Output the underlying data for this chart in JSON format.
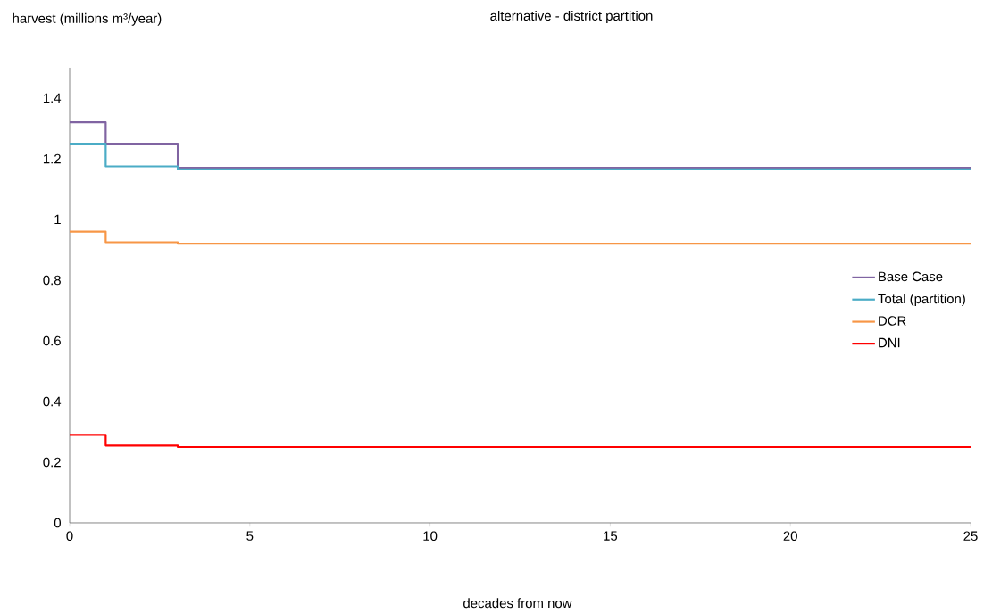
{
  "chart_data": {
    "type": "step",
    "title": "alternative - district partition",
    "xlabel": "decades from now",
    "ylabel": "harvest (millions m³/year)",
    "x": [
      0,
      1,
      3,
      25
    ],
    "series": [
      {
        "name": "Base Case",
        "color": "#8064a2",
        "values": [
          1.32,
          1.25,
          1.17,
          1.17
        ]
      },
      {
        "name": "Total (partition)",
        "color": "#4bacc6",
        "values": [
          1.25,
          1.175,
          1.165,
          1.165
        ]
      },
      {
        "name": "DCR",
        "color": "#f79646",
        "values": [
          0.96,
          0.925,
          0.92,
          0.92
        ]
      },
      {
        "name": "DNI",
        "color": "#ff0000",
        "values": [
          0.29,
          0.255,
          0.25,
          0.25
        ]
      }
    ],
    "xlim": [
      0,
      25
    ],
    "xticks": [
      0,
      5,
      10,
      15,
      20,
      25
    ],
    "ylim": [
      0,
      1.5
    ],
    "yticks": [
      0,
      {
        "value": 0.2,
        "label": "0.2"
      },
      {
        "value": 0.4,
        "label": "0.4"
      },
      {
        "value": 0.6,
        "label": "0.6"
      },
      {
        "value": 0.8,
        "label": "0.8"
      },
      1,
      {
        "value": 1.2,
        "label": "1.2"
      },
      {
        "value": 1.4,
        "label": "1.4"
      }
    ],
    "legend": "right",
    "grid": false,
    "marker": "none",
    "line_style": "solid"
  }
}
